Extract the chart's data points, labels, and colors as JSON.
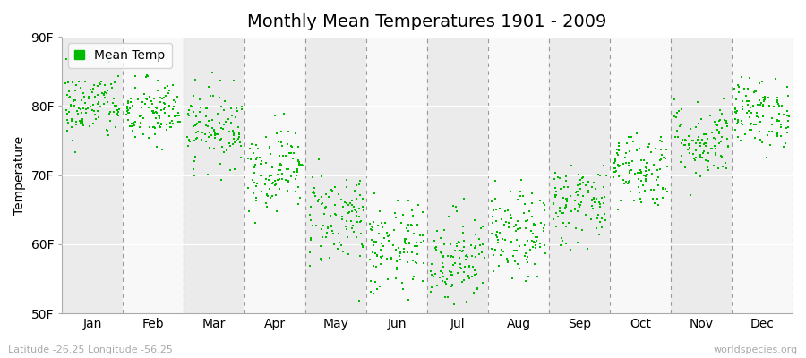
{
  "title": "Monthly Mean Temperatures 1901 - 2009",
  "ylabel": "Temperature",
  "xlabel_labels": [
    "Jan",
    "Feb",
    "Mar",
    "Apr",
    "May",
    "Jun",
    "Jul",
    "Aug",
    "Sep",
    "Oct",
    "Nov",
    "Dec"
  ],
  "ytick_labels": [
    "50F",
    "60F",
    "70F",
    "80F",
    "90F"
  ],
  "ytick_values": [
    50,
    60,
    70,
    80,
    90
  ],
  "ylim": [
    50,
    90
  ],
  "legend_label": "Mean Temp",
  "dot_color": "#00bb00",
  "fig_bg_color": "#ffffff",
  "plot_bg_color": "#ffffff",
  "watermark_left": "Latitude -26.25 Longitude -56.25",
  "watermark_right": "worldspecies.org",
  "monthly_means": [
    80,
    79,
    77,
    71,
    64,
    59,
    58,
    61,
    66,
    71,
    75,
    79
  ],
  "monthly_stds": [
    2.5,
    2.5,
    2.8,
    3.0,
    3.5,
    3.5,
    3.5,
    3.2,
    3.0,
    2.8,
    2.8,
    2.5
  ],
  "n_years": 109,
  "seed": 42,
  "title_fontsize": 14,
  "axis_label_fontsize": 10,
  "tick_fontsize": 10,
  "watermark_fontsize": 8
}
